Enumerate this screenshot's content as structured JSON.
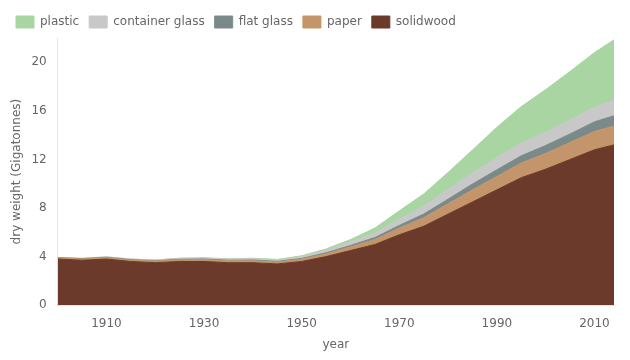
{
  "chart_data": {
    "type": "area",
    "stacked": true,
    "x": [
      1900,
      1905,
      1910,
      1915,
      1920,
      1925,
      1930,
      1935,
      1940,
      1945,
      1950,
      1955,
      1960,
      1965,
      1970,
      1975,
      1980,
      1985,
      1990,
      1995,
      2000,
      2005,
      2010,
      2014
    ],
    "series": [
      {
        "name": "solidwood",
        "color": "#6B3A2A",
        "values": [
          3.8,
          3.7,
          3.8,
          3.6,
          3.5,
          3.6,
          3.6,
          3.5,
          3.5,
          3.4,
          3.6,
          4.0,
          4.5,
          5.0,
          5.8,
          6.5,
          7.5,
          8.5,
          9.5,
          10.5,
          11.2,
          12.0,
          12.8,
          13.2
        ]
      },
      {
        "name": "paper",
        "color": "#C4956A",
        "values": [
          0.1,
          0.11,
          0.12,
          0.12,
          0.13,
          0.14,
          0.15,
          0.15,
          0.16,
          0.15,
          0.18,
          0.22,
          0.3,
          0.4,
          0.55,
          0.7,
          0.85,
          1.0,
          1.1,
          1.2,
          1.3,
          1.4,
          1.5,
          1.55
        ]
      },
      {
        "name": "flat glass",
        "color": "#7A8A8A",
        "values": [
          0.01,
          0.02,
          0.02,
          0.03,
          0.03,
          0.04,
          0.05,
          0.05,
          0.06,
          0.06,
          0.07,
          0.09,
          0.12,
          0.17,
          0.22,
          0.3,
          0.38,
          0.48,
          0.55,
          0.6,
          0.65,
          0.7,
          0.8,
          0.85
        ]
      },
      {
        "name": "container glass",
        "color": "#C8C8C8",
        "values": [
          0.02,
          0.03,
          0.04,
          0.05,
          0.06,
          0.08,
          0.09,
          0.1,
          0.12,
          0.12,
          0.15,
          0.2,
          0.28,
          0.38,
          0.5,
          0.65,
          0.8,
          0.9,
          1.0,
          1.05,
          1.1,
          1.15,
          1.2,
          1.25
        ]
      },
      {
        "name": "plastic",
        "color": "#A8D5A2",
        "values": [
          0.0,
          0.0,
          0.0,
          0.0,
          0.0,
          0.01,
          0.01,
          0.02,
          0.03,
          0.04,
          0.07,
          0.12,
          0.2,
          0.4,
          0.7,
          1.0,
          1.4,
          1.9,
          2.5,
          3.0,
          3.5,
          4.0,
          4.5,
          5.0
        ]
      }
    ],
    "xlabel": "year",
    "ylabel": "dry weight (Gigatonnes)",
    "xlim": [
      1900,
      2014
    ],
    "xticks": [
      1910,
      1930,
      1950,
      1970,
      1990,
      2010
    ],
    "ylim": [
      0,
      22
    ],
    "yticks": [
      0,
      4,
      8,
      12,
      16,
      20
    ],
    "grid": false,
    "legend": "upper left"
  }
}
